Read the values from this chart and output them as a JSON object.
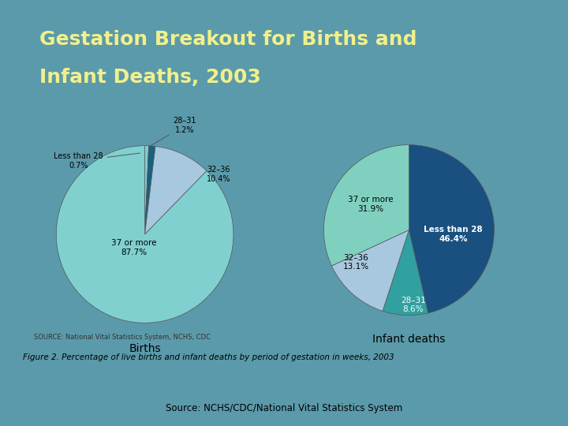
{
  "title_line1": "Gestation Breakout for Births and",
  "title_line2": "Infant Deaths, 2003",
  "title_color": "#f0f08c",
  "bg_color": "#5b9aaa",
  "stripe_color": "#8b4040",
  "panel_bg": "#ffffff",
  "source_text": "Source: NCHS/CDC/National Vital Statistics System",
  "figure_caption": "Figure 2. Percentage of live births and infant deaths by period of gestation in weeks, 2003",
  "source_panel": "SOURCE: National Vital Statistics System, NCHS, CDC",
  "births_labels": [
    "Less than 28",
    "28-31",
    "32-36",
    "37 or more"
  ],
  "births_values": [
    0.7,
    1.2,
    10.4,
    87.7
  ],
  "births_colors": [
    "#7ecece",
    "#1a6080",
    "#a8c8e0",
    "#80d0d0"
  ],
  "births_title": "Births",
  "deaths_labels": [
    "Less than 28",
    "28-31",
    "32-36",
    "37 or more"
  ],
  "deaths_values": [
    46.4,
    8.6,
    13.1,
    31.9
  ],
  "deaths_colors": [
    "#1a5080",
    "#30a0a0",
    "#a8c8e0",
    "#80d0c0"
  ],
  "deaths_title": "Infant deaths"
}
